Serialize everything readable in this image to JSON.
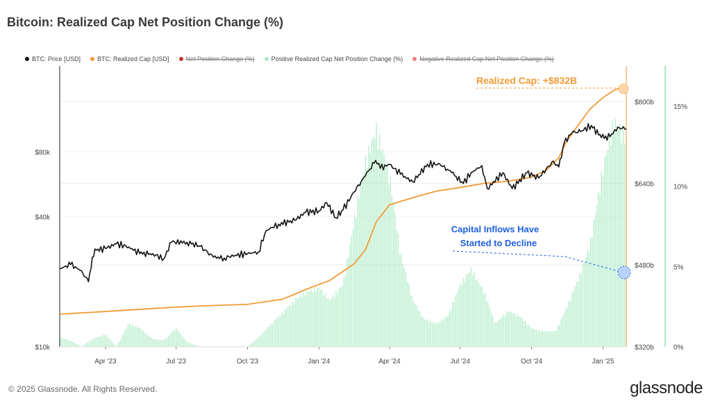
{
  "title": "Bitcoin: Realized Cap Net Position Change (%)",
  "legend": [
    {
      "label": "BTC: Price [USD]",
      "color": "#111111",
      "struck": false
    },
    {
      "label": "BTC: Realized Cap [USD]",
      "color": "#f29a36",
      "struck": false
    },
    {
      "label": "Net Position Change (%)",
      "color": "#c0392b",
      "struck": true
    },
    {
      "label": "Positive Realized Cap Net Position Change (%)",
      "color": "#a8eac2",
      "struck": false
    },
    {
      "label": "Negative Realized Cap Net Position Change (%)",
      "color": "#f08080",
      "struck": true
    }
  ],
  "footer": {
    "copyright": "© 2025 Glassnode. All Rights Reserved.",
    "logo": "glassnode"
  },
  "annotations": {
    "realized_cap": "Realized Cap: +$832B",
    "capital_inflows_line1": "Capital Inflows Have",
    "capital_inflows_line2": "Started to Decline"
  },
  "chart_data": {
    "type": "line",
    "x_range": [
      "2023-02-01",
      "2025-01-31"
    ],
    "x_ticks": [
      "Apr '23",
      "Jul '23",
      "Oct '23",
      "Jan '24",
      "Apr '24",
      "Jul '24",
      "Oct '24",
      "Jan '25"
    ],
    "y_left": {
      "scale": "log",
      "range": [
        10000,
        200000
      ],
      "ticks": [
        {
          "value": 10000,
          "label": "$10k"
        },
        {
          "value": 40000,
          "label": "$40k"
        },
        {
          "value": 80000,
          "label": "$80k"
        }
      ]
    },
    "y_mid": {
      "range": [
        320,
        870
      ],
      "ticks": [
        {
          "value": 320,
          "label": "$320b"
        },
        {
          "value": 480,
          "label": "$480b"
        },
        {
          "value": 640,
          "label": "$640b"
        },
        {
          "value": 800,
          "label": "$800b"
        }
      ]
    },
    "y_right": {
      "range": [
        0,
        17.5
      ],
      "ticks": [
        {
          "value": 0,
          "label": "0%"
        },
        {
          "value": 5,
          "label": "5%"
        },
        {
          "value": 10,
          "label": "10%"
        },
        {
          "value": 15,
          "label": "15%"
        }
      ]
    },
    "series": [
      {
        "name": "BTC: Price [USD]",
        "axis": "left",
        "color": "#111111",
        "x": [
          "2023-02-01",
          "2023-02-15",
          "2023-03-01",
          "2023-03-10",
          "2023-03-15",
          "2023-03-20",
          "2023-04-01",
          "2023-04-15",
          "2023-05-01",
          "2023-05-15",
          "2023-06-01",
          "2023-06-15",
          "2023-06-25",
          "2023-07-15",
          "2023-08-01",
          "2023-08-18",
          "2023-09-01",
          "2023-09-15",
          "2023-10-01",
          "2023-10-15",
          "2023-10-25",
          "2023-11-10",
          "2023-12-01",
          "2023-12-15",
          "2024-01-01",
          "2024-01-11",
          "2024-01-23",
          "2024-02-01",
          "2024-02-15",
          "2024-03-01",
          "2024-03-14",
          "2024-03-20",
          "2024-04-01",
          "2024-04-15",
          "2024-05-01",
          "2024-05-20",
          "2024-06-05",
          "2024-06-20",
          "2024-07-05",
          "2024-07-15",
          "2024-07-29",
          "2024-08-05",
          "2024-08-25",
          "2024-09-06",
          "2024-09-25",
          "2024-10-10",
          "2024-10-29",
          "2024-11-05",
          "2024-11-12",
          "2024-11-22",
          "2024-12-05",
          "2024-12-17",
          "2024-12-30",
          "2025-01-10",
          "2025-01-20",
          "2025-01-31"
        ],
        "y": [
          23000,
          24000,
          22500,
          20000,
          26000,
          28000,
          28500,
          30000,
          29000,
          27000,
          27000,
          25500,
          30500,
          30500,
          29200,
          26000,
          25800,
          26500,
          27000,
          27500,
          34500,
          37000,
          38500,
          42000,
          42500,
          46500,
          39500,
          43000,
          52000,
          62000,
          73000,
          67000,
          70000,
          63000,
          58000,
          70000,
          70000,
          64000,
          57000,
          64000,
          69000,
          54000,
          64000,
          54000,
          64000,
          60500,
          72500,
          68000,
          88000,
          98000,
          100000,
          106000,
          93000,
          94000,
          104000,
          102000
        ]
      },
      {
        "name": "BTC: Realized Cap [USD]",
        "axis": "mid",
        "color": "#f29a36",
        "x": [
          "2023-02-01",
          "2023-04-01",
          "2023-06-01",
          "2023-08-01",
          "2023-10-01",
          "2023-11-15",
          "2023-12-15",
          "2024-01-15",
          "2024-02-15",
          "2024-03-01",
          "2024-03-15",
          "2024-04-01",
          "2024-05-01",
          "2024-06-01",
          "2024-07-01",
          "2024-08-01",
          "2024-09-01",
          "2024-10-01",
          "2024-10-20",
          "2024-11-05",
          "2024-11-15",
          "2024-12-01",
          "2024-12-15",
          "2025-01-01",
          "2025-01-15",
          "2025-01-31"
        ],
        "y": [
          384,
          389,
          395,
          400,
          403,
          413,
          432,
          450,
          482,
          510,
          565,
          598,
          612,
          625,
          632,
          640,
          644,
          652,
          666,
          690,
          722,
          756,
          785,
          808,
          822,
          832
        ]
      },
      {
        "name": "Positive Realized Cap Net Position Change (%)",
        "axis": "right",
        "color": "#a8eac2",
        "x": [
          "2023-02-01",
          "2023-02-15",
          "2023-03-01",
          "2023-03-15",
          "2023-04-01",
          "2023-04-15",
          "2023-05-01",
          "2023-05-15",
          "2023-06-01",
          "2023-06-15",
          "2023-07-01",
          "2023-07-15",
          "2023-08-01",
          "2023-08-15",
          "2023-09-01",
          "2023-09-15",
          "2023-10-01",
          "2023-10-15",
          "2023-11-01",
          "2023-11-15",
          "2023-12-01",
          "2023-12-15",
          "2024-01-01",
          "2024-01-15",
          "2024-02-01",
          "2024-02-15",
          "2024-03-01",
          "2024-03-15",
          "2024-04-01",
          "2024-04-15",
          "2024-05-01",
          "2024-05-15",
          "2024-06-01",
          "2024-06-15",
          "2024-07-01",
          "2024-07-15",
          "2024-08-01",
          "2024-08-15",
          "2024-09-01",
          "2024-09-15",
          "2024-10-01",
          "2024-10-15",
          "2024-11-01",
          "2024-11-15",
          "2024-12-01",
          "2024-12-15",
          "2025-01-01",
          "2025-01-15",
          "2025-01-31"
        ],
        "y": [
          0.6,
          0.4,
          0.0,
          0.5,
          0.8,
          0.0,
          1.5,
          1.2,
          0.5,
          0.4,
          1.2,
          0.3,
          0.0,
          0.0,
          0.0,
          0.0,
          0.0,
          0.6,
          1.5,
          2.2,
          3.0,
          3.5,
          3.8,
          3.0,
          4.0,
          8.0,
          12.0,
          14.0,
          11.0,
          6.0,
          3.0,
          1.8,
          1.5,
          2.0,
          4.0,
          5.0,
          3.5,
          1.5,
          2.3,
          2.0,
          1.2,
          1.0,
          1.0,
          2.5,
          4.5,
          6.5,
          11.5,
          14.5,
          13.5
        ]
      }
    ]
  }
}
